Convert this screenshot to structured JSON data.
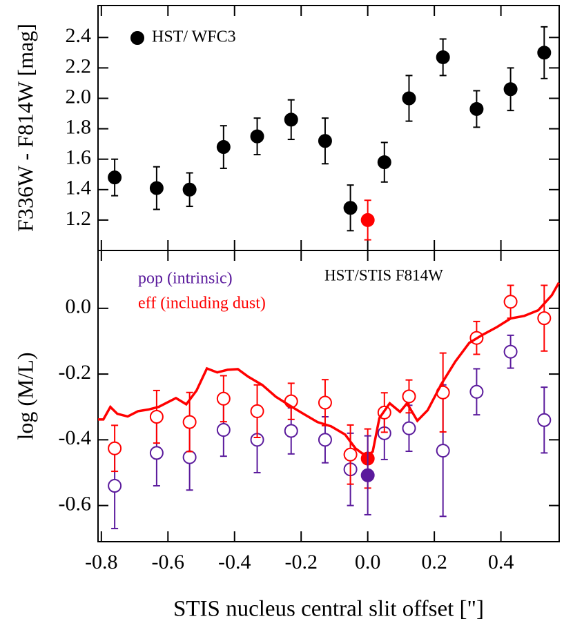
{
  "chart_data": [
    {
      "type": "scatter",
      "ylabel": "F336W - F814W [mag]",
      "xlim": [
        -0.81,
        0.575
      ],
      "ylim": [
        1.0,
        2.61
      ],
      "yticks": [
        1.2,
        1.4,
        1.6,
        1.8,
        {
          "value": 2.0,
          "label": "2.0"
        },
        2.2,
        2.4
      ],
      "legend": "upper left",
      "series": [
        {
          "name": "HST/ WFC3",
          "color": "#000000",
          "marker": "filled",
          "x": [
            -0.76,
            -0.634,
            -0.535,
            -0.433,
            -0.332,
            -0.23,
            -0.128,
            -0.052,
            0.05,
            0.124,
            0.226,
            0.327,
            0.429,
            0.53
          ],
          "values": [
            1.48,
            1.41,
            1.4,
            1.68,
            1.75,
            1.86,
            1.72,
            1.28,
            1.58,
            2.0,
            2.27,
            1.93,
            2.06,
            2.3
          ],
          "errors": [
            0.12,
            0.14,
            0.11,
            0.14,
            0.12,
            0.13,
            0.15,
            0.15,
            0.13,
            0.15,
            0.12,
            0.12,
            0.14,
            0.17
          ]
        },
        {
          "color": "#ff0000",
          "marker": "filled",
          "x": [
            0.0
          ],
          "values": [
            1.2
          ],
          "errors": [
            0.13
          ]
        }
      ]
    },
    {
      "type": "scatter",
      "xlabel": "STIS nucleus central slit offset [\"]",
      "ylabel": "log (M/L)",
      "annotation": "HST/STIS F814W",
      "xlim": [
        -0.81,
        0.575
      ],
      "ylim": [
        -0.71,
        0.176
      ],
      "xticks": [
        -0.8,
        -0.6,
        -0.4,
        -0.2,
        {
          "value": 0.0,
          "label": "0.0"
        },
        0.2,
        0.4
      ],
      "yticks": [
        -0.6,
        -0.4,
        -0.2,
        {
          "value": 0.0,
          "label": "0.0"
        }
      ],
      "legend": "upper left",
      "series": [
        {
          "name": "pop (intrinsic)",
          "color": "#5a1a9c",
          "marker": "open",
          "x": [
            -0.76,
            -0.634,
            -0.535,
            -0.433,
            -0.332,
            -0.23,
            -0.128,
            -0.052,
            0.05,
            0.124,
            0.226,
            0.327,
            0.429,
            0.53
          ],
          "values": [
            -0.54,
            -0.44,
            -0.453,
            -0.37,
            -0.4,
            -0.373,
            -0.4,
            -0.49,
            -0.38,
            -0.365,
            -0.433,
            -0.254,
            -0.132,
            -0.34
          ],
          "errors": [
            0.13,
            0.1,
            0.1,
            0.08,
            0.1,
            0.07,
            0.07,
            0.11,
            0.08,
            0.07,
            0.2,
            0.07,
            0.05,
            0.1
          ]
        },
        {
          "name": "eff (including dust)",
          "color": "#ff0000",
          "marker": "open",
          "x": [
            -0.76,
            -0.634,
            -0.535,
            -0.433,
            -0.332,
            -0.23,
            -0.128,
            -0.052,
            0.05,
            0.124,
            0.226,
            0.327,
            0.429,
            0.53
          ],
          "values": [
            -0.426,
            -0.33,
            -0.346,
            -0.275,
            -0.313,
            -0.283,
            -0.287,
            -0.445,
            -0.317,
            -0.268,
            -0.256,
            -0.09,
            0.02,
            -0.03
          ],
          "errors": [
            0.07,
            0.08,
            0.09,
            0.07,
            0.08,
            0.055,
            0.07,
            0.09,
            0.06,
            0.05,
            0.12,
            0.05,
            0.05,
            0.1
          ]
        },
        {
          "color": "#ff0000",
          "marker": "line",
          "x": [
            -0.81,
            -0.794,
            -0.773,
            -0.752,
            -0.721,
            -0.69,
            -0.659,
            -0.628,
            -0.576,
            -0.545,
            -0.514,
            -0.483,
            -0.452,
            -0.421,
            -0.39,
            -0.359,
            -0.317,
            -0.276,
            -0.234,
            -0.193,
            -0.151,
            -0.11,
            -0.068,
            -0.037,
            -0.017,
            0.0,
            0.015,
            0.035,
            0.066,
            0.097,
            0.118,
            0.149,
            0.18,
            0.222,
            0.263,
            0.305,
            0.346,
            0.388,
            0.429,
            0.47,
            0.512,
            0.553,
            0.574
          ],
          "values": [
            -0.338,
            -0.338,
            -0.3,
            -0.321,
            -0.329,
            -0.313,
            -0.308,
            -0.3,
            -0.273,
            -0.292,
            -0.25,
            -0.183,
            -0.195,
            -0.187,
            -0.185,
            -0.208,
            -0.233,
            -0.269,
            -0.296,
            -0.321,
            -0.346,
            -0.359,
            -0.384,
            -0.426,
            -0.441,
            -0.447,
            -0.436,
            -0.334,
            -0.289,
            -0.315,
            -0.289,
            -0.342,
            -0.31,
            -0.229,
            -0.162,
            -0.105,
            -0.08,
            -0.057,
            -0.031,
            -0.023,
            -0.006,
            0.04,
            0.078
          ]
        },
        {
          "color": "#ff0000",
          "marker": "filled",
          "x": [
            0.0
          ],
          "values": [
            -0.457
          ],
          "errors": [
            0.09
          ]
        },
        {
          "color": "#5a1a9c",
          "marker": "filled",
          "x": [
            0.0
          ],
          "values": [
            -0.508
          ],
          "errors": [
            0.12
          ]
        }
      ]
    }
  ]
}
